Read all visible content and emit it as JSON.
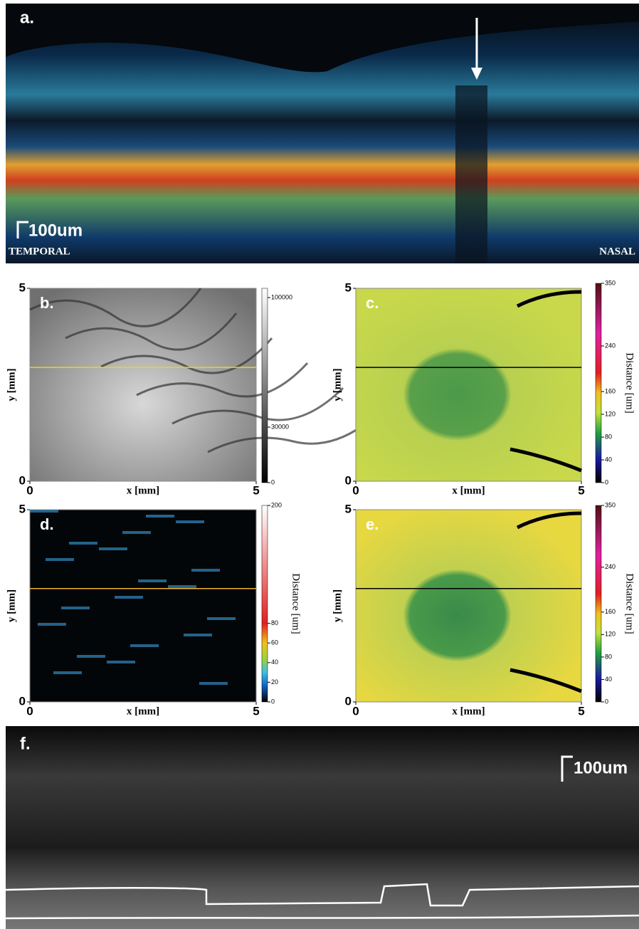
{
  "panels": {
    "a": {
      "label": "a.",
      "scale_bar": "100um",
      "left_text": "TEMPORAL",
      "right_text": "NASAL"
    },
    "b": {
      "label": "b.",
      "x_label": "x [mm]",
      "y_label": "y [mm]",
      "xticks": [
        0,
        5
      ],
      "yticks": [
        0,
        5
      ],
      "xlim": [
        0,
        5
      ],
      "ylim": [
        0,
        5
      ],
      "colorbar_lim": [
        0,
        105000
      ],
      "colorbar_ticks": [
        0,
        30000,
        100000
      ],
      "colormap": "gray"
    },
    "c": {
      "label": "c.",
      "x_label": "x [mm]",
      "y_label": "y [mm]",
      "xticks": [
        0,
        5
      ],
      "yticks": [
        0,
        5
      ],
      "xlim": [
        0,
        5
      ],
      "ylim": [
        0,
        5
      ],
      "colorbar_label": "Distance [um]",
      "colorbar_lim": [
        0,
        350
      ],
      "colorbar_ticks": [
        0,
        40,
        80,
        120,
        160,
        240,
        350
      ],
      "colormap": "thickness"
    },
    "d": {
      "label": "d.",
      "x_label": "x [mm]",
      "y_label": "y [mm]",
      "xticks": [
        0,
        5
      ],
      "yticks": [
        0,
        5
      ],
      "xlim": [
        0,
        5
      ],
      "ylim": [
        0,
        5
      ],
      "colorbar_label": "Distance [um]",
      "colorbar_lim": [
        0,
        200
      ],
      "colorbar_ticks": [
        0,
        20,
        40,
        60,
        80,
        200
      ],
      "colormap": "distance"
    },
    "e": {
      "label": "e.",
      "x_label": "x [mm]",
      "y_label": "y [mm]",
      "xticks": [
        0,
        5
      ],
      "yticks": [
        0,
        5
      ],
      "xlim": [
        0,
        5
      ],
      "ylim": [
        0,
        5
      ],
      "colorbar_label": "Distance [um]",
      "colorbar_lim": [
        0,
        350
      ],
      "colorbar_ticks": [
        0,
        40,
        80,
        120,
        160,
        240,
        350
      ],
      "colormap": "thickness"
    },
    "f": {
      "label": "f.",
      "scale_bar": "100um"
    }
  }
}
